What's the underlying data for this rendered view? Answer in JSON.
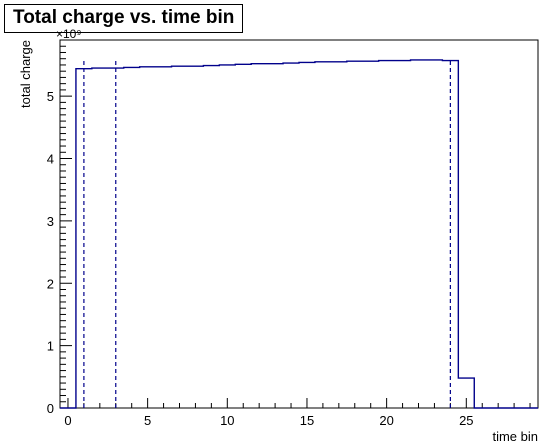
{
  "chart_data": {
    "type": "step",
    "title": "Total charge vs. time bin",
    "xlabel": "time bin",
    "ylabel": "total charge",
    "y_multiplier_label": "×10⁹",
    "xlim": [
      -0.5,
      29.5
    ],
    "ylim": [
      0,
      5.9
    ],
    "x_ticks": [
      0,
      5,
      10,
      15,
      20,
      25
    ],
    "y_ticks": [
      0,
      1,
      2,
      3,
      4,
      5
    ],
    "grid": false,
    "line_color": "#00008b",
    "bins": {
      "edges": [
        -0.5,
        0.5,
        1.5,
        2.5,
        3.5,
        4.5,
        5.5,
        6.5,
        7.5,
        8.5,
        9.5,
        10.5,
        11.5,
        12.5,
        13.5,
        14.5,
        15.5,
        16.5,
        17.5,
        18.5,
        19.5,
        20.5,
        21.5,
        22.5,
        23.5,
        24.5,
        25.5,
        26.5,
        27.5,
        28.5,
        29.5
      ],
      "values": [
        0,
        5.44,
        5.45,
        5.45,
        5.46,
        5.47,
        5.47,
        5.48,
        5.48,
        5.49,
        5.5,
        5.51,
        5.52,
        5.52,
        5.53,
        5.54,
        5.55,
        5.55,
        5.56,
        5.56,
        5.57,
        5.57,
        5.58,
        5.58,
        5.57,
        0.48,
        0,
        0,
        0,
        0
      ]
    },
    "vertical_markers": [
      1.0,
      3.0,
      24.0
    ]
  }
}
